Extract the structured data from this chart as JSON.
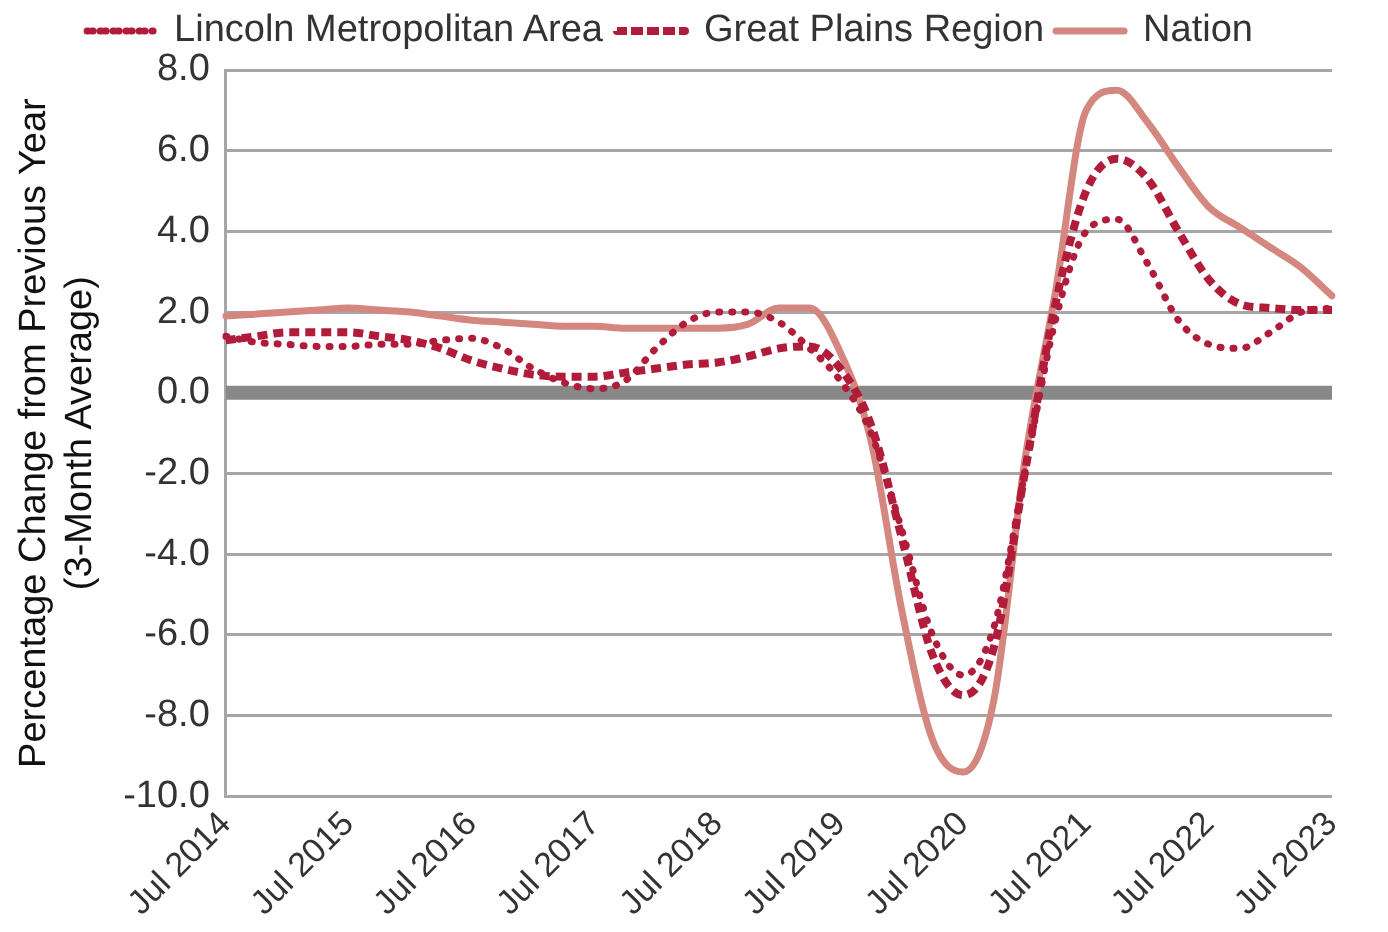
{
  "chart_data": {
    "type": "line",
    "ylabel": "Percentage Change from Previous Year\n(3-Month Average)",
    "categories": [
      "Jul 2014",
      null,
      null,
      null,
      "Jul 2015",
      null,
      null,
      null,
      "Jul 2016",
      null,
      null,
      null,
      "Jul 2017",
      null,
      null,
      null,
      "Jul 2018",
      null,
      null,
      null,
      "Jul 2019",
      null,
      null,
      null,
      "Jul 2020",
      null,
      null,
      null,
      "Jul 2021",
      null,
      null,
      null,
      "Jul 2022",
      null,
      null,
      null,
      "Jul 2023"
    ],
    "series": [
      {
        "name": "Lincoln Metropolitan Area",
        "color": "#b01c3a",
        "line_style": "dotted",
        "values": [
          1.4,
          1.25,
          1.2,
          1.15,
          1.15,
          1.2,
          1.2,
          1.3,
          1.35,
          1.1,
          0.6,
          0.25,
          0.1,
          0.3,
          1.1,
          1.75,
          2.0,
          2.0,
          1.75,
          1.1,
          0.3,
          -1.0,
          -3.4,
          -6.0,
          -7.0,
          -5.8,
          -2.0,
          1.8,
          4.0,
          4.3,
          3.2,
          1.8,
          1.2,
          1.1,
          1.5,
          2.0,
          2.1
        ]
      },
      {
        "name": "Great Plains Region",
        "color": "#b01c3a",
        "line_style": "dashed",
        "values": [
          1.3,
          1.4,
          1.5,
          1.5,
          1.5,
          1.4,
          1.3,
          1.1,
          0.8,
          0.6,
          0.45,
          0.4,
          0.4,
          0.5,
          0.6,
          0.7,
          0.75,
          0.9,
          1.1,
          1.15,
          0.6,
          -0.8,
          -3.6,
          -6.5,
          -7.5,
          -6.3,
          -2.0,
          2.2,
          5.0,
          5.8,
          5.3,
          4.0,
          2.8,
          2.2,
          2.1,
          2.05,
          2.05
        ]
      },
      {
        "name": "Nation",
        "color": "#d4877f",
        "line_style": "solid",
        "values": [
          1.9,
          1.95,
          2.0,
          2.05,
          2.1,
          2.05,
          2.0,
          1.9,
          1.8,
          1.75,
          1.7,
          1.65,
          1.65,
          1.6,
          1.6,
          1.6,
          1.6,
          1.7,
          2.1,
          2.1,
          1.0,
          -1.2,
          -5.4,
          -8.6,
          -9.4,
          -7.6,
          -1.7,
          2.5,
          7.0,
          7.5,
          6.7,
          5.6,
          4.6,
          4.1,
          3.6,
          3.1,
          2.4
        ]
      }
    ],
    "ylim": [
      -10,
      8
    ],
    "yticks": [
      {
        "value": -10,
        "label": "-10.0"
      },
      {
        "value": -8,
        "label": "-8.0"
      },
      {
        "value": -6,
        "label": "-6.0"
      },
      {
        "value": -4,
        "label": "-4.0"
      },
      {
        "value": -2,
        "label": "-2.0"
      },
      {
        "value": 0,
        "label": "0.0"
      },
      {
        "value": 2,
        "label": "2.0"
      },
      {
        "value": 4,
        "label": "4.0"
      },
      {
        "value": 6,
        "label": "6.0"
      },
      {
        "value": 8,
        "label": "8.0"
      }
    ],
    "ref_lines": [
      {
        "axis": "y",
        "value": 0,
        "color": "#888888"
      }
    ],
    "grid": "y",
    "legend": "top",
    "marker": "none"
  }
}
